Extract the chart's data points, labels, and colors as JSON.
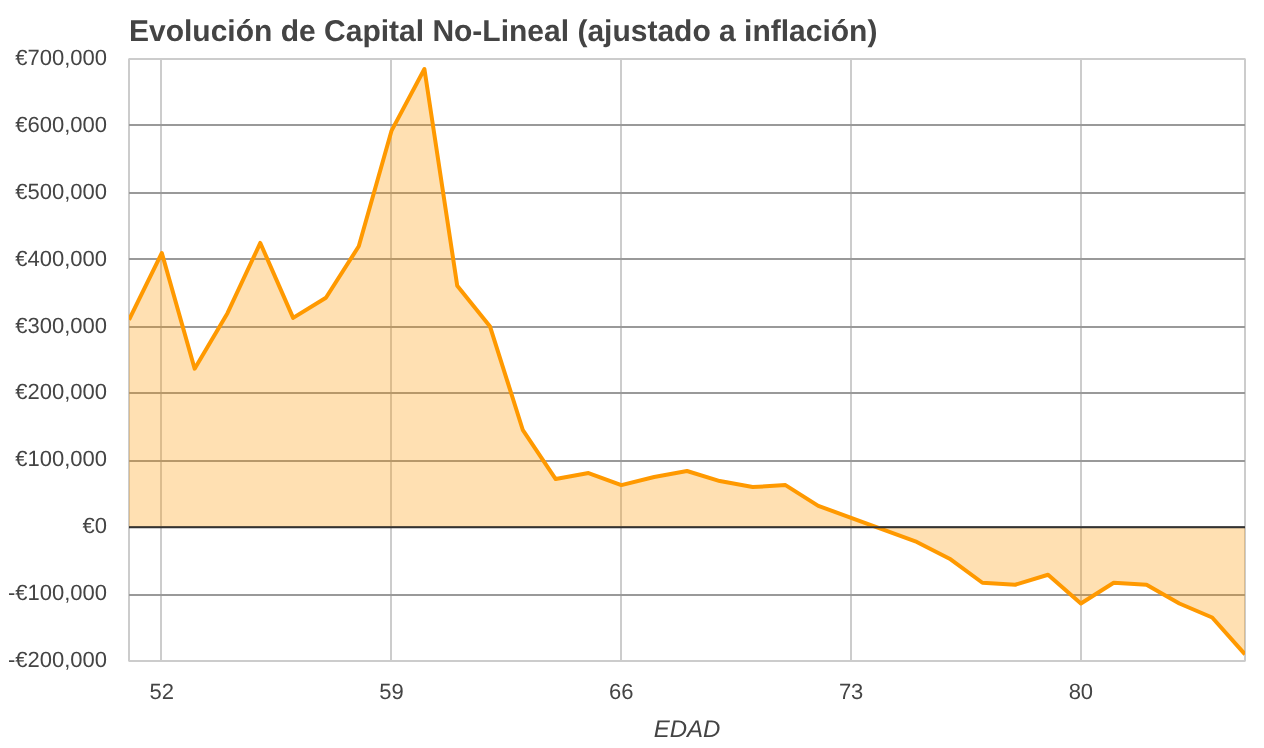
{
  "chart_data": {
    "type": "area",
    "title": "Evolución de Capital No-Lineal (ajustado a inflación)",
    "xlabel": "EDAD",
    "x": [
      51,
      52,
      53,
      54,
      55,
      56,
      57,
      58,
      59,
      60,
      61,
      62,
      63,
      64,
      65,
      66,
      67,
      68,
      69,
      70,
      71,
      72,
      73,
      74,
      75,
      76,
      77,
      78,
      79,
      80,
      81,
      82,
      83,
      84,
      85
    ],
    "series": [
      {
        "color": "#ff9900",
        "values": [
          310000,
          410000,
          237000,
          320000,
          425000,
          313000,
          343000,
          420000,
          593000,
          685000,
          361000,
          300000,
          145000,
          72000,
          81000,
          63000,
          75000,
          84000,
          69000,
          60000,
          63000,
          32000,
          14000,
          -4000,
          -22000,
          -47000,
          -83000,
          -86000,
          -71000,
          -114000,
          -83000,
          -86000,
          -114000,
          -135000,
          -190000
        ]
      }
    ],
    "xlim": [
      51,
      85
    ],
    "xticks": [
      52,
      59,
      66,
      73,
      80
    ],
    "ylim": [
      -200000,
      700000
    ],
    "yticks": [
      {
        "value": -200000,
        "label": "-€200,000"
      },
      {
        "value": -100000,
        "label": "-€100,000"
      },
      {
        "value": 0,
        "label": "€0"
      },
      {
        "value": 100000,
        "label": "€100,000"
      },
      {
        "value": 200000,
        "label": "€200,000"
      },
      {
        "value": 300000,
        "label": "€300,000"
      },
      {
        "value": 400000,
        "label": "€400,000"
      },
      {
        "value": 500000,
        "label": "€500,000"
      },
      {
        "value": 600000,
        "label": "€600,000"
      },
      {
        "value": 700000,
        "label": "€700,000"
      }
    ],
    "ref_lines": [
      {
        "axis": "y",
        "value": 0,
        "color": "#333333"
      }
    ],
    "grid": true
  }
}
